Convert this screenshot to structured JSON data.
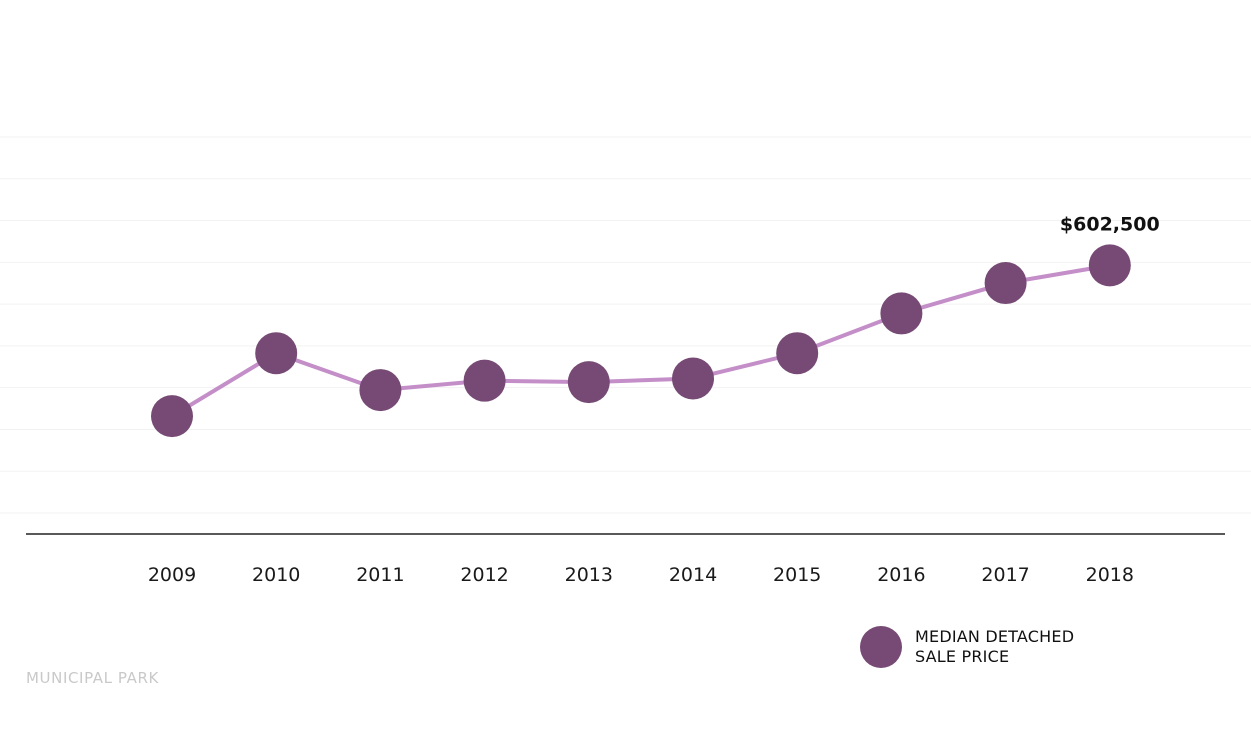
{
  "chart_data": {
    "type": "line",
    "categories": [
      "2009",
      "2010",
      "2011",
      "2012",
      "2013",
      "2014",
      "2015",
      "2016",
      "2017",
      "2018"
    ],
    "series": [
      {
        "name": "MEDIAN DETACHED SALE PRICE",
        "values": [
          394000,
          481000,
          430000,
          443000,
          441000,
          446000,
          481000,
          536000,
          578000,
          602500
        ]
      }
    ],
    "annotations": [
      {
        "category": "2018",
        "text": "$602,500"
      }
    ],
    "ylim": [
      260000,
      780000
    ],
    "grid": true,
    "legend_position": "bottom-right",
    "colors": {
      "line": "#c48ec8",
      "marker": "#764a74",
      "axis": "#222222",
      "grid": "#f2f2f2"
    }
  },
  "legend": {
    "label_line1": "MEDIAN DETACHED",
    "label_line2": "SALE PRICE"
  },
  "source": "MUNICIPAL PARK"
}
